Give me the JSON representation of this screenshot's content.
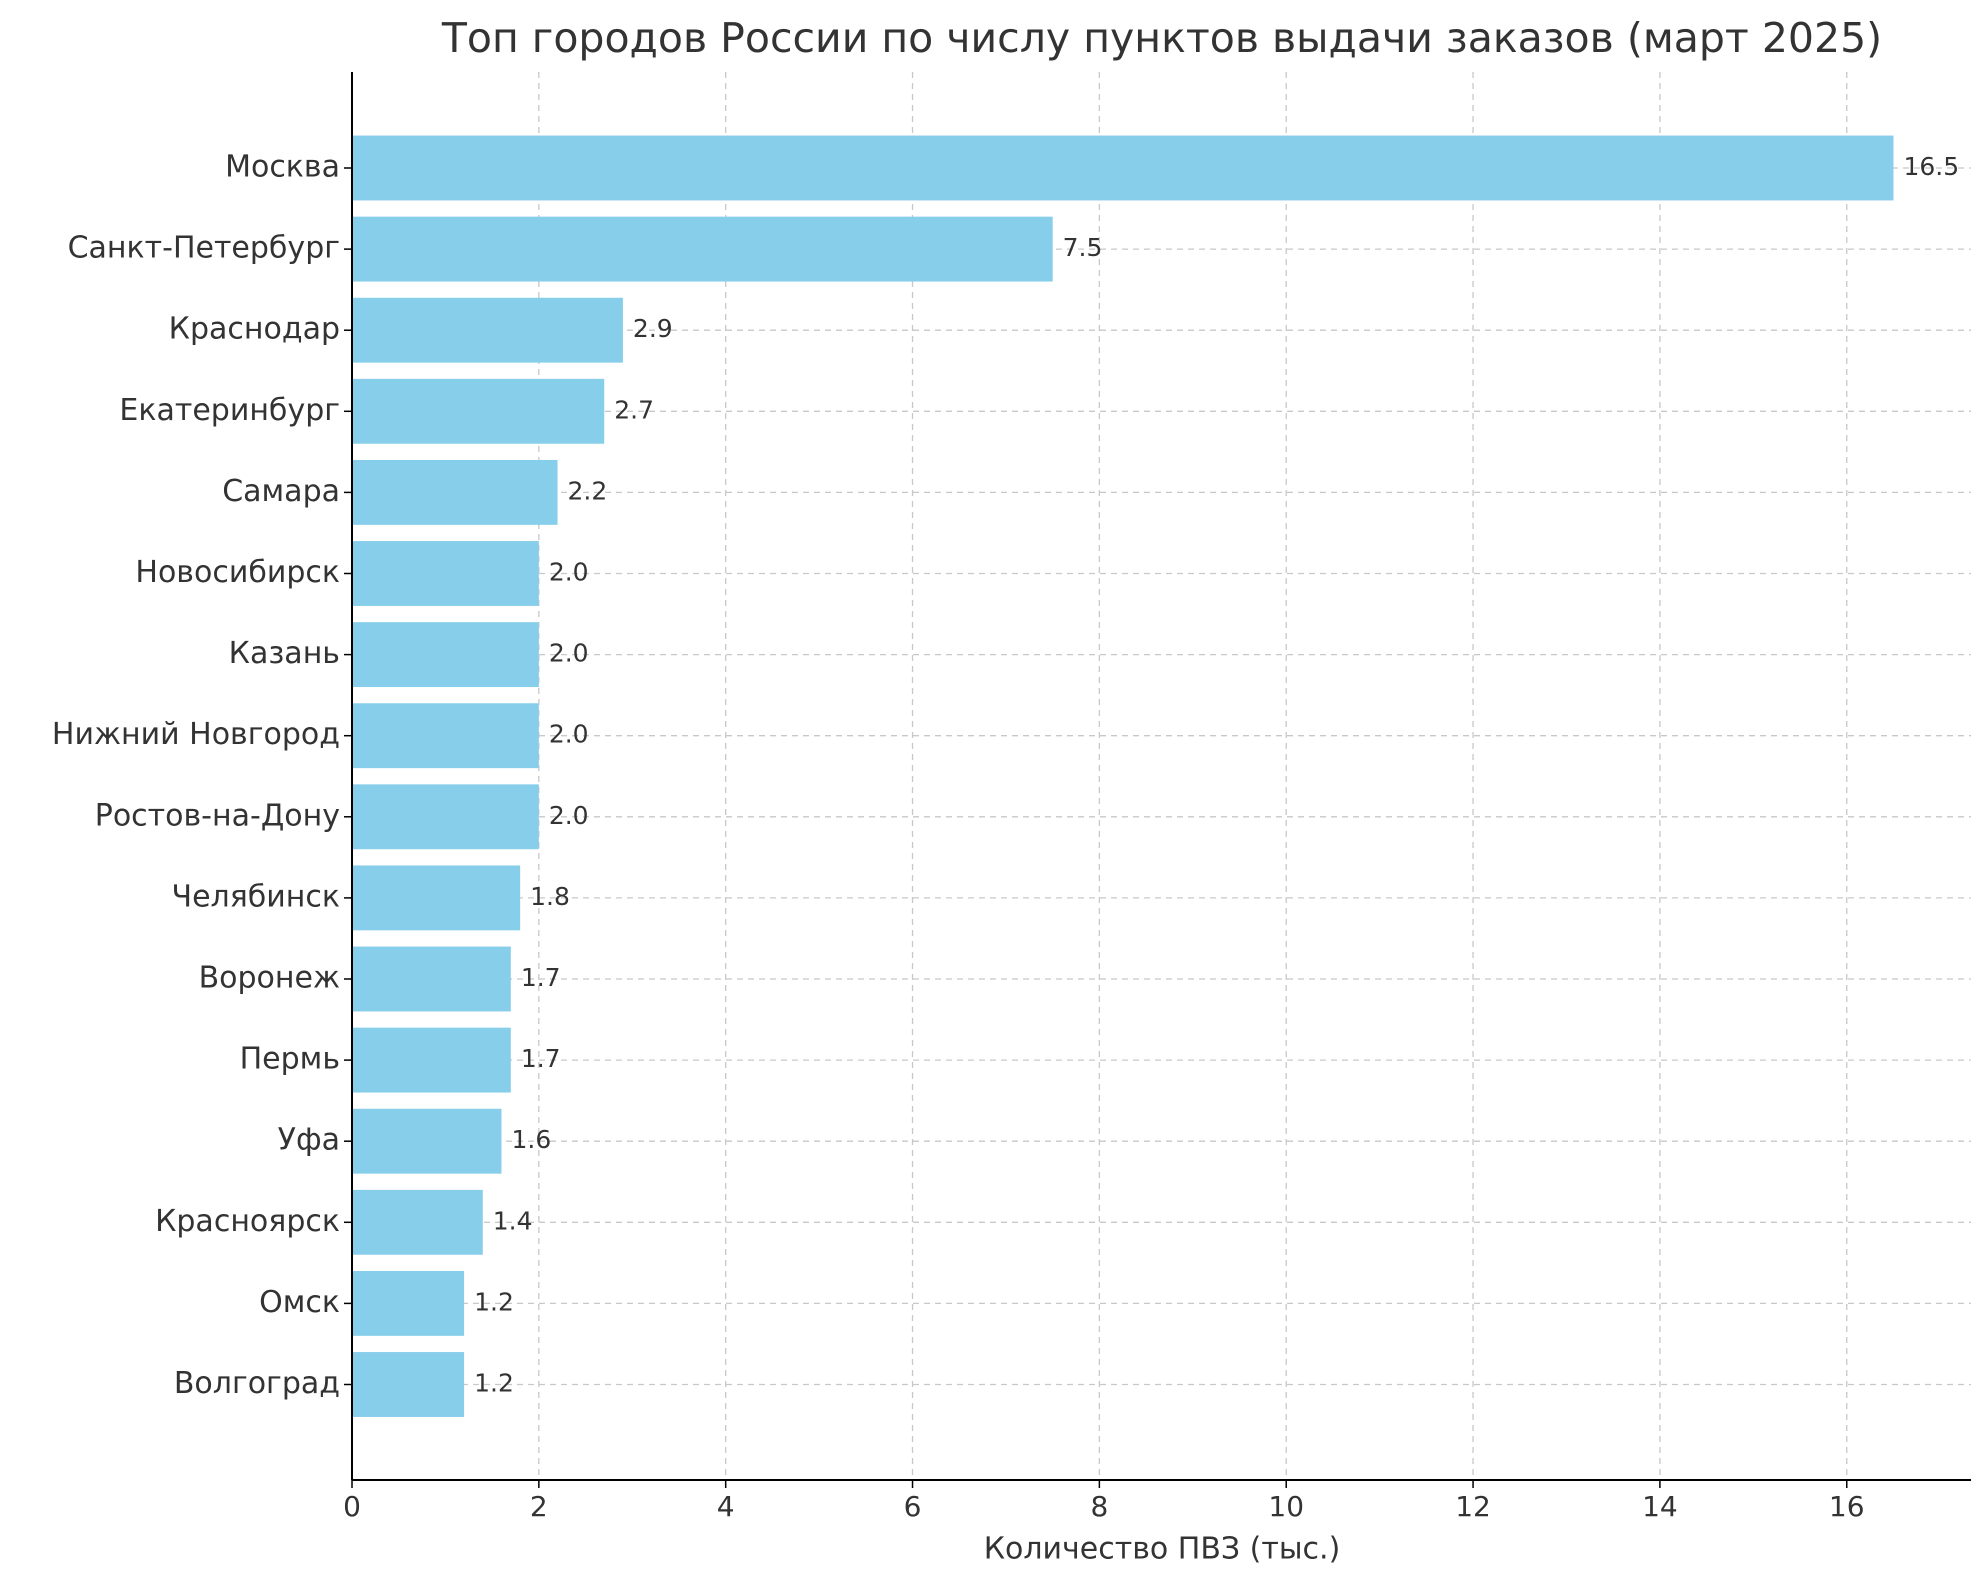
{
  "chart_data": {
    "type": "barh",
    "title": "Топ городов России по числу пунктов выдачи заказов (март 2025)",
    "x_label": "Количество ПВЗ (тыс.)",
    "categories": [
      "Москва",
      "Санкт-Петербург",
      "Краснодар",
      "Екатеринбург",
      "Самара",
      "Новосибирск",
      "Казань",
      "Нижний Новгород",
      "Ростов-на-Дону",
      "Челябинск",
      "Воронеж",
      "Пермь",
      "Уфа",
      "Красноярск",
      "Омск",
      "Волгоград"
    ],
    "values": [
      16.5,
      7.5,
      2.9,
      2.7,
      2.2,
      2,
      2,
      2,
      2,
      1.8,
      1.7,
      1.7,
      1.6,
      1.4,
      1.2,
      1.2
    ],
    "value_labels": [
      "16.5",
      "7.5",
      "2.9",
      "2.7",
      "2.2",
      "2.0",
      "2.0",
      "2.0",
      "2.0",
      "1.8",
      "1.7",
      "1.7",
      "1.6",
      "1.4",
      "1.2",
      "1.2"
    ],
    "color": "#87ceeb",
    "xlim": [
      0,
      17.33
    ],
    "xticks": [
      0,
      2,
      4,
      6,
      8,
      10,
      12,
      14,
      16
    ],
    "grid": true
  }
}
